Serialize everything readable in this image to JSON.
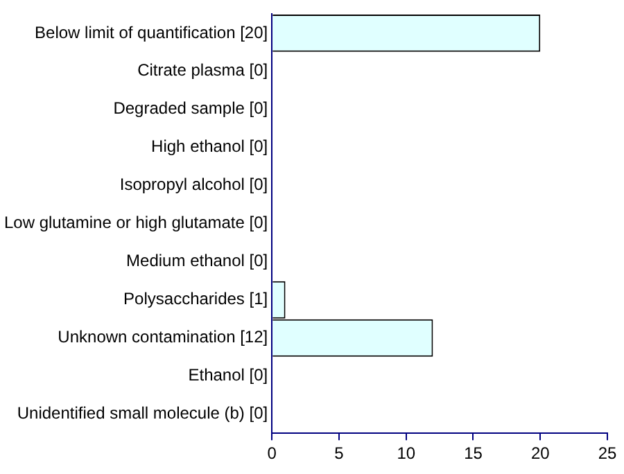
{
  "chart_data": {
    "type": "bar",
    "orientation": "horizontal",
    "categories": [
      "Below limit of quantification [20]",
      "Citrate plasma [0]",
      "Degraded sample [0]",
      "High ethanol [0]",
      "Isopropyl alcohol [0]",
      "Low glutamine or high glutamate [0]",
      "Medium ethanol [0]",
      "Polysaccharides [1]",
      "Unknown contamination [12]",
      "Ethanol [0]",
      "Unidentified small molecule (b) [0]"
    ],
    "values": [
      20,
      0,
      0,
      0,
      0,
      0,
      0,
      1,
      12,
      0,
      0
    ],
    "color": "#e0ffff",
    "xlim": [
      0,
      25
    ],
    "xticks": [
      0,
      5,
      10,
      15,
      20,
      25
    ],
    "grid": false,
    "legend": false
  }
}
